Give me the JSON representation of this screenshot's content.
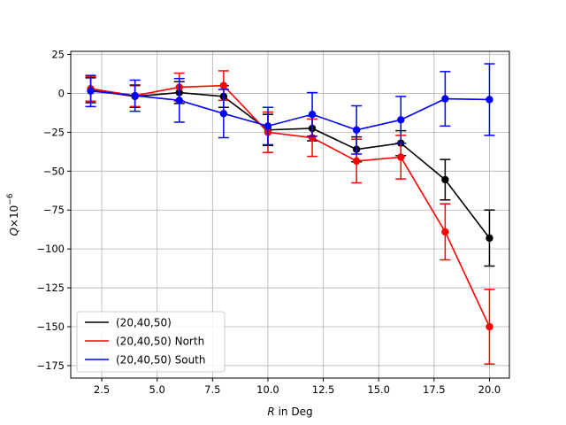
{
  "chart_data": {
    "type": "line",
    "xlabel": "$R$ in Deg",
    "ylabel": "$Q\\times10^{-6}$",
    "xlim": [
      1.1,
      20.9
    ],
    "ylim": [
      -183,
      27
    ],
    "x_ticks": [
      2.5,
      5.0,
      7.5,
      10.0,
      12.5,
      15.0,
      17.5,
      20.0
    ],
    "x_tick_labels": [
      "2.5",
      "5.0",
      "7.5",
      "10.0",
      "12.5",
      "15.0",
      "17.5",
      "20.0"
    ],
    "y_ticks": [
      25,
      0,
      -25,
      -50,
      -75,
      -100,
      -125,
      -150,
      -175
    ],
    "y_tick_labels": [
      "25",
      "0",
      "−25",
      "−50",
      "−75",
      "−100",
      "−125",
      "−150",
      "−175"
    ],
    "grid": true,
    "legend_position": "lower-left",
    "x": [
      2,
      4,
      6,
      8,
      10,
      12,
      14,
      16,
      18,
      20
    ],
    "series": [
      {
        "name": "(20,40,50)",
        "color": "#000000",
        "values": [
          2,
          -2,
          0.5,
          -2,
          -23.5,
          -22.5,
          -36,
          -32,
          -55.5,
          -93
        ],
        "errors": [
          8,
          7,
          7,
          7,
          10,
          8,
          8,
          8,
          13,
          18
        ]
      },
      {
        "name": "(20,40,50) North",
        "color": "#ff0000",
        "values": [
          3,
          -1.5,
          4,
          5,
          -25,
          -28.5,
          -43.5,
          -41,
          -89,
          -150
        ],
        "errors": [
          8,
          7,
          9,
          9.5,
          13,
          12,
          14,
          14,
          18,
          24
        ]
      },
      {
        "name": "(20,40,50) South",
        "color": "#0000ff",
        "values": [
          1.5,
          -1.5,
          -4.5,
          -13,
          -21,
          -13.5,
          -23.5,
          -17,
          -3.5,
          -4
        ],
        "errors": [
          10,
          10,
          14,
          15.5,
          12,
          14,
          15.5,
          15,
          17.5,
          23
        ]
      }
    ]
  }
}
